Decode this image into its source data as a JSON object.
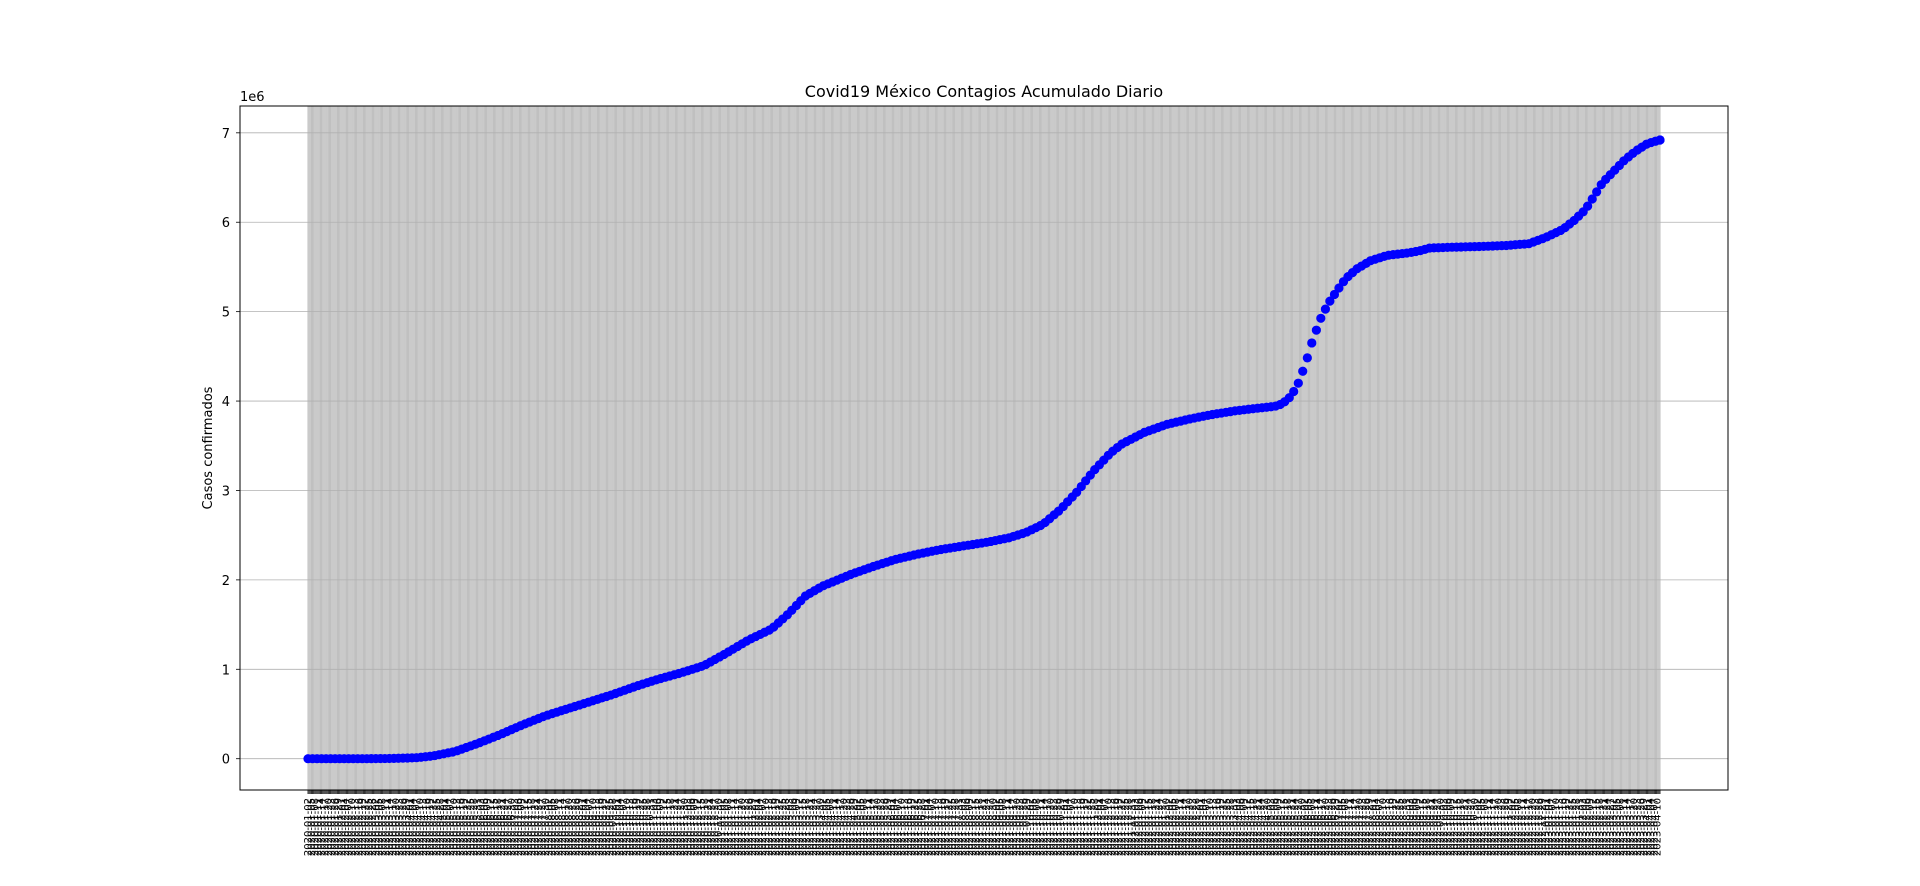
{
  "chart_data": {
    "type": "scatter",
    "title": "Covid19 México Contagios Acumulado Diario",
    "ylabel": "Casos confirmados",
    "xlabel": "",
    "y_offset_label": "1e6",
    "ylim": [
      -350000,
      7300000
    ],
    "y_ticks": [
      0,
      1,
      2,
      3,
      4,
      5,
      6,
      7
    ],
    "grid": true,
    "marker_color": "#0000ff",
    "series": [
      {
        "x_date_range": [
          "2020-01-02",
          "2022-08-20"
        ],
        "points": [
          [
            0,
            0
          ],
          [
            50,
            0
          ],
          [
            70,
            2000
          ],
          [
            95,
            10000
          ],
          [
            110,
            30000
          ],
          [
            130,
            80000
          ],
          [
            150,
            170000
          ],
          [
            170,
            270000
          ],
          [
            190,
            380000
          ],
          [
            210,
            480000
          ],
          [
            230,
            560000
          ],
          [
            250,
            640000
          ],
          [
            270,
            720000
          ],
          [
            290,
            810000
          ],
          [
            310,
            890000
          ],
          [
            330,
            960000
          ],
          [
            350,
            1040000
          ],
          [
            370,
            1180000
          ],
          [
            390,
            1330000
          ],
          [
            410,
            1450000
          ],
          [
            425,
            1620000
          ],
          [
            440,
            1820000
          ],
          [
            455,
            1930000
          ],
          [
            480,
            2060000
          ],
          [
            500,
            2150000
          ],
          [
            520,
            2230000
          ],
          [
            540,
            2290000
          ],
          [
            560,
            2340000
          ],
          [
            580,
            2380000
          ],
          [
            600,
            2420000
          ],
          [
            620,
            2470000
          ],
          [
            635,
            2530000
          ],
          [
            650,
            2620000
          ],
          [
            665,
            2780000
          ],
          [
            680,
            2980000
          ],
          [
            695,
            3220000
          ],
          [
            710,
            3420000
          ],
          [
            720,
            3520000
          ],
          [
            740,
            3650000
          ],
          [
            760,
            3740000
          ],
          [
            780,
            3800000
          ],
          [
            800,
            3850000
          ],
          [
            820,
            3890000
          ],
          [
            840,
            3920000
          ],
          [
            855,
            3940000
          ],
          [
            862,
            3970000
          ],
          [
            870,
            4060000
          ],
          [
            876,
            4200000
          ],
          [
            882,
            4400000
          ],
          [
            888,
            4650000
          ],
          [
            895,
            4900000
          ],
          [
            902,
            5080000
          ],
          [
            910,
            5230000
          ],
          [
            918,
            5370000
          ],
          [
            928,
            5480000
          ],
          [
            940,
            5570000
          ],
          [
            955,
            5630000
          ],
          [
            975,
            5660000
          ],
          [
            987,
            5690000
          ],
          [
            990,
            5710000
          ],
          [
            1010,
            5720000
          ],
          [
            1040,
            5730000
          ],
          [
            1060,
            5740000
          ],
          [
            1080,
            5760000
          ],
          [
            1095,
            5830000
          ],
          [
            1110,
            5920000
          ],
          [
            1120,
            6020000
          ],
          [
            1130,
            6140000
          ],
          [
            1138,
            6300000
          ],
          [
            1145,
            6440000
          ],
          [
            1155,
            6570000
          ],
          [
            1165,
            6700000
          ],
          [
            1175,
            6800000
          ],
          [
            1185,
            6880000
          ],
          [
            1196,
            6920000
          ]
        ]
      }
    ]
  }
}
